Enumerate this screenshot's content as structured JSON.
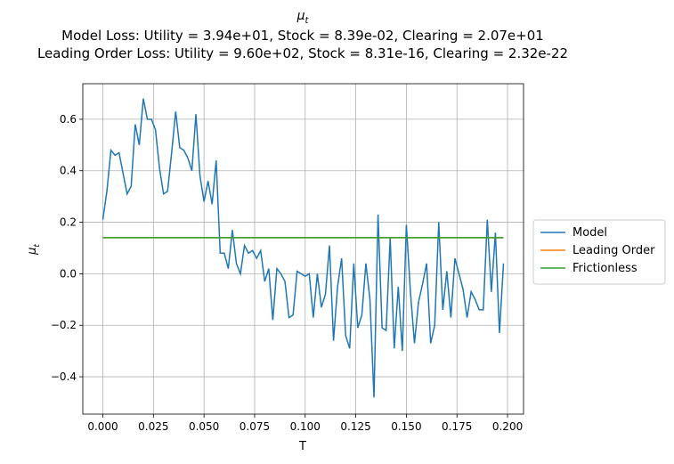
{
  "chart_data": {
    "type": "line",
    "title": {
      "base": "μ",
      "sub": "t"
    },
    "subtitle": [
      "Model Loss: Utility = 3.94e+01, Stock = 8.39e-02, Clearing = 2.07e+01",
      "Leading Order Loss: Utility = 9.60e+02, Stock = 8.31e-16, Clearing = 2.32e-22"
    ],
    "xlabel": "T",
    "ylabel": {
      "base": "μ",
      "sub": "t"
    },
    "xlim": [
      -0.0099,
      0.2079
    ],
    "ylim": [
      -0.545,
      0.738
    ],
    "xticks": [
      {
        "value": 0,
        "label": "0.000"
      },
      {
        "value": 0.025,
        "label": "0.025"
      },
      {
        "value": 0.05,
        "label": "0.050"
      },
      {
        "value": 0.075,
        "label": "0.075"
      },
      {
        "value": 0.1,
        "label": "0.100"
      },
      {
        "value": 0.125,
        "label": "0.125"
      },
      {
        "value": 0.15,
        "label": "0.150"
      },
      {
        "value": 0.175,
        "label": "0.175"
      },
      {
        "value": 0.2,
        "label": "0.200"
      }
    ],
    "yticks": [
      {
        "value": -0.4,
        "label": "−0.4"
      },
      {
        "value": -0.2,
        "label": "−0.2"
      },
      {
        "value": 0,
        "label": "0.0"
      },
      0.2,
      0.4,
      0.6
    ],
    "grid": true,
    "legend": "outside-right",
    "series": [
      {
        "name": "Model",
        "color": "#1f77b4",
        "x": [
          0,
          0.002,
          0.004,
          0.006,
          0.008,
          0.01,
          0.012,
          0.014,
          0.016,
          0.018,
          0.02,
          0.022,
          0.024,
          0.026,
          0.028,
          0.03,
          0.032,
          0.034,
          0.036,
          0.038,
          0.04,
          0.042,
          0.044,
          0.046,
          0.048,
          0.05,
          0.052,
          0.054,
          0.056,
          0.058,
          0.06,
          0.062,
          0.064,
          0.066,
          0.068,
          0.07,
          0.072,
          0.074,
          0.076,
          0.078,
          0.08,
          0.082,
          0.084,
          0.086,
          0.088,
          0.09,
          0.092,
          0.094,
          0.096,
          0.098,
          0.1,
          0.102,
          0.104,
          0.106,
          0.108,
          0.11,
          0.112,
          0.114,
          0.116,
          0.118,
          0.12,
          0.122,
          0.124,
          0.126,
          0.128,
          0.13,
          0.132,
          0.134,
          0.136,
          0.138,
          0.14,
          0.142,
          0.144,
          0.146,
          0.148,
          0.15,
          0.152,
          0.154,
          0.156,
          0.158,
          0.16,
          0.162,
          0.164,
          0.166,
          0.168,
          0.17,
          0.172,
          0.174,
          0.176,
          0.178,
          0.18,
          0.182,
          0.184,
          0.186,
          0.188,
          0.19,
          0.192,
          0.194,
          0.196,
          0.198
        ],
        "values": [
          0.21,
          0.32,
          0.48,
          0.46,
          0.47,
          0.39,
          0.31,
          0.34,
          0.58,
          0.5,
          0.68,
          0.6,
          0.6,
          0.56,
          0.41,
          0.31,
          0.32,
          0.47,
          0.63,
          0.49,
          0.48,
          0.45,
          0.4,
          0.62,
          0.38,
          0.28,
          0.36,
          0.27,
          0.44,
          0.08,
          0.08,
          0.02,
          0.17,
          0.04,
          0,
          0.11,
          0.08,
          0.09,
          0.06,
          0.09,
          -0.03,
          0.02,
          -0.18,
          0.02,
          0,
          -0.03,
          -0.17,
          -0.16,
          0.01,
          0,
          -0.01,
          0,
          -0.17,
          0,
          -0.13,
          -0.08,
          0.11,
          -0.26,
          -0.05,
          0.06,
          -0.24,
          -0.29,
          0.04,
          -0.21,
          -0.16,
          0.04,
          -0.1,
          -0.48,
          0.23,
          -0.21,
          -0.22,
          0.14,
          -0.29,
          -0.05,
          -0.3,
          0.19,
          -0.07,
          -0.27,
          -0.11,
          -0.04,
          0.04,
          -0.27,
          -0.2,
          0.2,
          -0.14,
          0.01,
          -0.17,
          0.06,
          0,
          -0.06,
          -0.17,
          -0.07,
          -0.1,
          -0.14,
          -0.14,
          0.21,
          -0.07,
          0.16,
          -0.23,
          0.04
        ]
      },
      {
        "name": "Leading Order",
        "color": "#ff7f0e",
        "x": [
          0,
          0.198
        ],
        "values": [
          0.14,
          0.14
        ]
      },
      {
        "name": "Frictionless",
        "color": "#2ca02c",
        "x": [
          0,
          0.198
        ],
        "values": [
          0.14,
          0.14
        ]
      }
    ]
  }
}
